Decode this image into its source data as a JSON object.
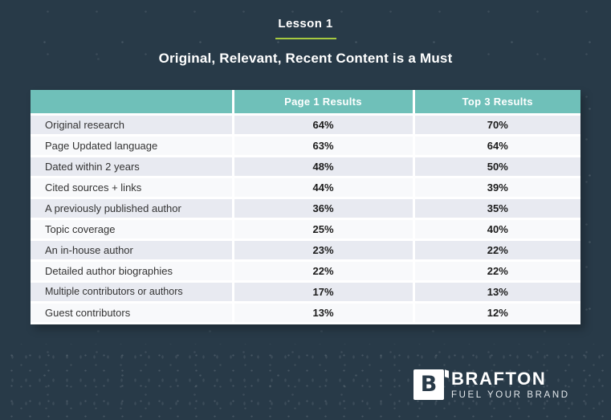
{
  "header": {
    "lesson": "Lesson 1",
    "title": "Original, Relevant, Recent Content is a Must"
  },
  "chart_data": {
    "type": "table",
    "title": "Original, Relevant, Recent Content is a Must",
    "subtitle": "Lesson 1",
    "columns": [
      "",
      "Page 1 Results",
      "Top 3 Results"
    ],
    "rows": [
      [
        "Original research",
        "64%",
        "70%"
      ],
      [
        "Page Updated language",
        "63%",
        "64%"
      ],
      [
        "Dated within 2 years",
        "48%",
        "50%"
      ],
      [
        "Cited sources + links",
        "44%",
        "39%"
      ],
      [
        "A previously published author",
        "36%",
        "35%"
      ],
      [
        "Topic coverage",
        "25%",
        "40%"
      ],
      [
        "An in-house author",
        "23%",
        "22%"
      ],
      [
        "Detailed author biographies",
        "22%",
        "22%"
      ],
      [
        "Multiple contributors or authors",
        "17%",
        "13%"
      ],
      [
        "Guest contributors",
        "13%",
        "12%"
      ]
    ],
    "categories": [
      "Original research",
      "Page Updated language",
      "Dated within 2 years",
      "Cited sources + links",
      "A previously published author",
      "Topic coverage",
      "An in-house author",
      "Detailed author biographies",
      "Multiple contributors or authors",
      "Guest contributors"
    ],
    "series": [
      {
        "name": "Page 1 Results",
        "values": [
          64,
          63,
          48,
          44,
          36,
          25,
          23,
          22,
          17,
          13
        ]
      },
      {
        "name": "Top 3 Results",
        "values": [
          70,
          64,
          50,
          39,
          35,
          40,
          22,
          22,
          13,
          12
        ]
      }
    ]
  },
  "footer": {
    "logo_icon": "brafton-b-square-icon",
    "logo_letter": "B",
    "brand": "BRAFTON",
    "tagline": "FUEL YOUR BRAND"
  },
  "colors": {
    "background": "#283a48",
    "header_teal": "#6fc0b9",
    "row_alt": "#e8eaf1",
    "row_base": "#f8f9fb",
    "accent_green": "#a6c940",
    "label_color": "#333333",
    "value_color": "#1b1b1b"
  }
}
